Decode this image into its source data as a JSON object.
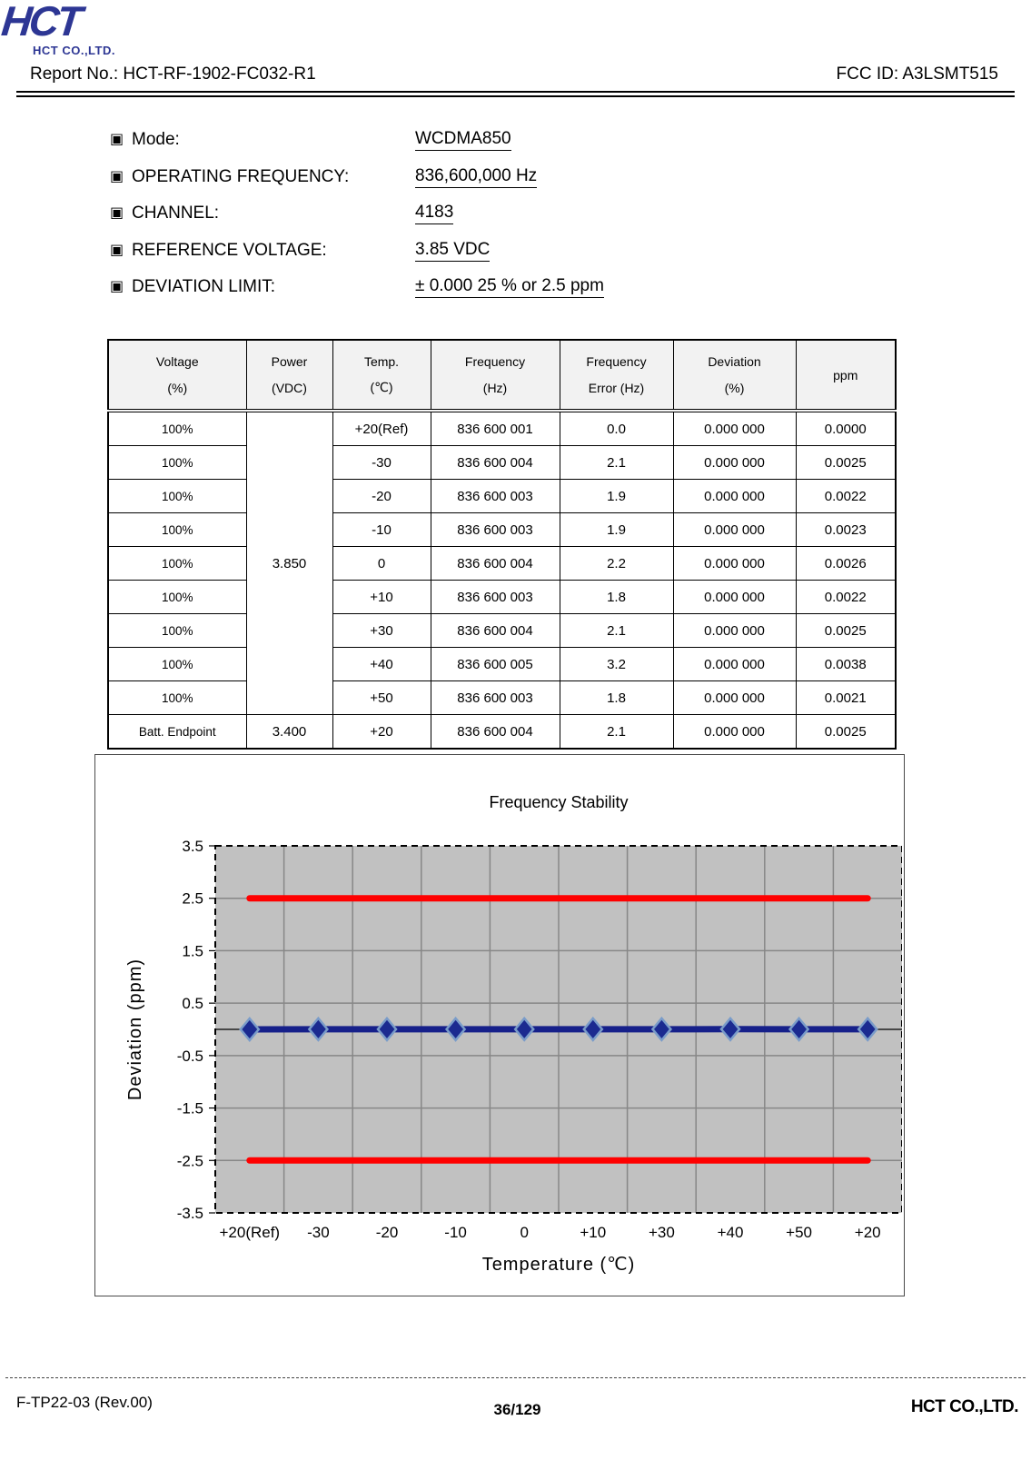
{
  "page": {
    "logo_main": "HCT",
    "logo_sub": "HCT CO.,LTD.",
    "report_no": "Report No.: HCT-RF-1902-FC032-R1",
    "fcc_id": "FCC ID: A3LSMT515"
  },
  "parameters": [
    {
      "bullet": "▣",
      "label": "Mode:",
      "value": "WCDMA850"
    },
    {
      "bullet": "▣",
      "label": "OPERATING FREQUENCY:",
      "value": "836,600,000 Hz"
    },
    {
      "bullet": "▣",
      "label": "CHANNEL:",
      "value": "4183"
    },
    {
      "bullet": "▣",
      "label": "REFERENCE VOLTAGE:",
      "value": "3.85 VDC"
    },
    {
      "bullet": "▣",
      "label": "DEVIATION LIMIT:",
      "value": "± 0.000 25 % or 2.5 ppm"
    }
  ],
  "table": {
    "columns": [
      {
        "line1": "Voltage",
        "line2": "(%)"
      },
      {
        "line1": "Power",
        "line2": "(VDC)"
      },
      {
        "line1": "Temp.",
        "line2": "(℃)"
      },
      {
        "line1": "Frequency",
        "line2": "(Hz)"
      },
      {
        "line1": "Frequency",
        "line2": "Error (Hz)"
      },
      {
        "line1": "Deviation",
        "line2": "(%)"
      },
      {
        "line1": "ppm",
        "line2": ""
      }
    ],
    "power_merged": "3.850",
    "rows": [
      {
        "voltage": "100%",
        "power": null,
        "temp": "+20(Ref)",
        "frequency": "836 600 001",
        "error": "0.0",
        "deviation": "0.000 000",
        "ppm": "0.0000"
      },
      {
        "voltage": "100%",
        "power": null,
        "temp": "-30",
        "frequency": "836 600 004",
        "error": "2.1",
        "deviation": "0.000 000",
        "ppm": "0.0025"
      },
      {
        "voltage": "100%",
        "power": null,
        "temp": "-20",
        "frequency": "836 600 003",
        "error": "1.9",
        "deviation": "0.000 000",
        "ppm": "0.0022"
      },
      {
        "voltage": "100%",
        "power": null,
        "temp": "-10",
        "frequency": "836 600 003",
        "error": "1.9",
        "deviation": "0.000 000",
        "ppm": "0.0023"
      },
      {
        "voltage": "100%",
        "power": null,
        "temp": "0",
        "frequency": "836 600 004",
        "error": "2.2",
        "deviation": "0.000 000",
        "ppm": "0.0026"
      },
      {
        "voltage": "100%",
        "power": null,
        "temp": "+10",
        "frequency": "836 600 003",
        "error": "1.8",
        "deviation": "0.000 000",
        "ppm": "0.0022"
      },
      {
        "voltage": "100%",
        "power": null,
        "temp": "+30",
        "frequency": "836 600 004",
        "error": "2.1",
        "deviation": "0.000 000",
        "ppm": "0.0025"
      },
      {
        "voltage": "100%",
        "power": null,
        "temp": "+40",
        "frequency": "836 600 005",
        "error": "3.2",
        "deviation": "0.000 000",
        "ppm": "0.0038"
      },
      {
        "voltage": "100%",
        "power": null,
        "temp": "+50",
        "frequency": "836 600 003",
        "error": "1.8",
        "deviation": "0.000 000",
        "ppm": "0.0021"
      },
      {
        "voltage": "Batt. Endpoint",
        "power": "3.400",
        "temp": "+20",
        "frequency": "836 600 004",
        "error": "2.1",
        "deviation": "0.000 000",
        "ppm": "0.0025"
      }
    ]
  },
  "chart_data": {
    "type": "line",
    "title": "Frequency Stability",
    "categories": [
      "+20(Ref)",
      "-30",
      "-20",
      "-10",
      "0",
      "+10",
      "+30",
      "+40",
      "+50",
      "+20"
    ],
    "series": [
      {
        "name": "Deviation (ppm)",
        "values": [
          0.0,
          0.0025,
          0.0022,
          0.0023,
          0.0026,
          0.0022,
          0.0025,
          0.0038,
          0.0021,
          0.0025
        ],
        "color": "#16208a",
        "marker": "diamond",
        "marker_fill": "#1b2a90",
        "marker_edge": "#7a9cc9"
      }
    ],
    "limit_lines": {
      "upper": 2.5,
      "lower": -2.5,
      "color": "#ff0000"
    },
    "xlabel": "Temperature (℃)",
    "ylabel": "Deviation (ppm)",
    "ylim": [
      -3.5,
      3.5
    ],
    "yticks": [
      3.5,
      2.5,
      1.5,
      0.5,
      -0.5,
      -1.5,
      -2.5,
      -3.5
    ],
    "grid": true,
    "legend": "none",
    "plot_bg": "#c1c1c1",
    "grid_color": "#878787"
  },
  "footer": {
    "left": "F-TP22-03 (Rev.00)",
    "center": "36/129",
    "right": "HCT CO.,LTD."
  }
}
